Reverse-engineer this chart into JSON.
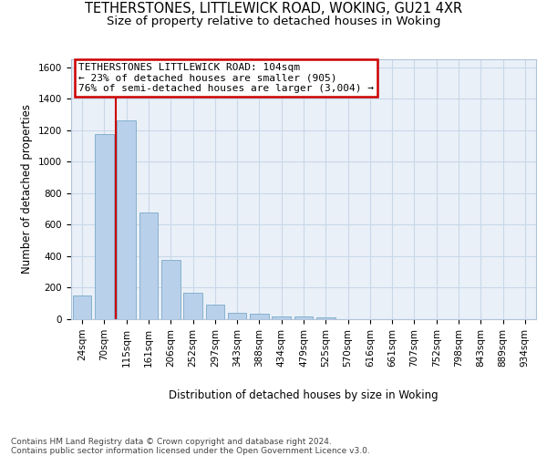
{
  "title": "TETHERSTONES, LITTLEWICK ROAD, WOKING, GU21 4XR",
  "subtitle": "Size of property relative to detached houses in Woking",
  "xlabel": "Distribution of detached houses by size in Woking",
  "ylabel": "Number of detached properties",
  "footer_line1": "Contains HM Land Registry data © Crown copyright and database right 2024.",
  "footer_line2": "Contains public sector information licensed under the Open Government Licence v3.0.",
  "categories": [
    "24sqm",
    "70sqm",
    "115sqm",
    "161sqm",
    "206sqm",
    "252sqm",
    "297sqm",
    "343sqm",
    "388sqm",
    "434sqm",
    "479sqm",
    "525sqm",
    "570sqm",
    "616sqm",
    "661sqm",
    "707sqm",
    "752sqm",
    "798sqm",
    "843sqm",
    "889sqm",
    "934sqm"
  ],
  "values": [
    150,
    1175,
    1260,
    680,
    375,
    170,
    90,
    40,
    35,
    20,
    20,
    10,
    0,
    0,
    0,
    0,
    0,
    0,
    0,
    0,
    0
  ],
  "bar_color": "#b8d0ea",
  "bar_edge_color": "#7aaac8",
  "red_line_index": 2,
  "annotation_text": "TETHERSTONES LITTLEWICK ROAD: 104sqm\n← 23% of detached houses are smaller (905)\n76% of semi-detached houses are larger (3,004) →",
  "annotation_box_color": "#ffffff",
  "annotation_box_edge_color": "#cc0000",
  "ylim": [
    0,
    1650
  ],
  "yticks": [
    0,
    200,
    400,
    600,
    800,
    1000,
    1200,
    1400,
    1600
  ],
  "grid_color": "#c8d8e8",
  "background_color": "#eaf0f8",
  "title_fontsize": 10.5,
  "subtitle_fontsize": 9.5,
  "axis_label_fontsize": 8.5,
  "tick_fontsize": 7.5,
  "annotation_fontsize": 8,
  "footer_fontsize": 6.5
}
